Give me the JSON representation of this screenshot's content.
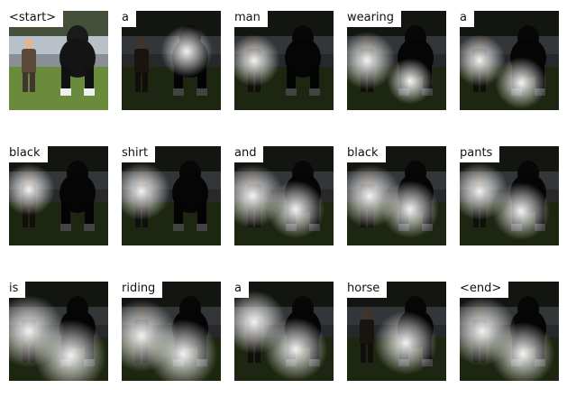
{
  "caption_tokens": [
    "<start>",
    "a",
    "man",
    "wearing",
    "a",
    "black",
    "shirt",
    "and",
    "black",
    "pants",
    "is",
    "riding",
    "a",
    "horse",
    "<end>"
  ],
  "figure": {
    "rows": 3,
    "columns": 5,
    "description_type": "attention-maps-per-token"
  }
}
